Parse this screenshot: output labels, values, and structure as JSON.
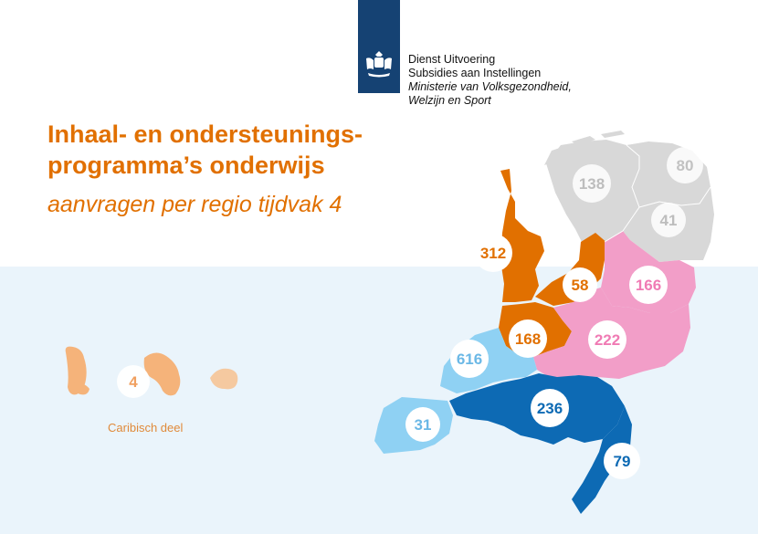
{
  "header": {
    "org_line1": "Dienst Uitvoering",
    "org_line2": "Subsidies aan Instellingen",
    "org_line3": "Ministerie van Volksgezondheid,",
    "org_line4": "Welzijn en Sport"
  },
  "title_line1": "Inhaal- en ondersteunings-",
  "title_line2": "programma’s onderwijs",
  "subtitle": "aanvragen per regio tijdvak 4",
  "caribbean": {
    "label": "Caribisch deel",
    "value": "4"
  },
  "regions": [
    {
      "id": "groningen",
      "value": "80",
      "color": "#d8d8d8",
      "text_color": "#c2c2c2"
    },
    {
      "id": "friesland",
      "value": "138",
      "color": "#d8d8d8",
      "text_color": "#bdbdbd"
    },
    {
      "id": "drenthe",
      "value": "41",
      "color": "#d8d8d8",
      "text_color": "#bdbdbd"
    },
    {
      "id": "noord-holland",
      "value": "312",
      "color": "#e17000",
      "text_color": "#e17000"
    },
    {
      "id": "flevoland",
      "value": "58",
      "color": "#e17000",
      "text_color": "#e17000"
    },
    {
      "id": "utrecht",
      "value": "168",
      "color": "#e17000",
      "text_color": "#e17000"
    },
    {
      "id": "overijssel",
      "value": "166",
      "color": "#f29ec8",
      "text_color": "#f07bb4"
    },
    {
      "id": "gelderland",
      "value": "222",
      "color": "#f29ec8",
      "text_color": "#f07bb4"
    },
    {
      "id": "zuid-holland",
      "value": "616",
      "color": "#8fd1f3",
      "text_color": "#6bb8e6"
    },
    {
      "id": "zeeland",
      "value": "31",
      "color": "#8fd1f3",
      "text_color": "#6bb8e6"
    },
    {
      "id": "noord-brabant",
      "value": "236",
      "color": "#0d6ab4",
      "text_color": "#0d6ab4"
    },
    {
      "id": "limburg",
      "value": "79",
      "color": "#0d6ab4",
      "text_color": "#0d6ab4"
    }
  ]
}
